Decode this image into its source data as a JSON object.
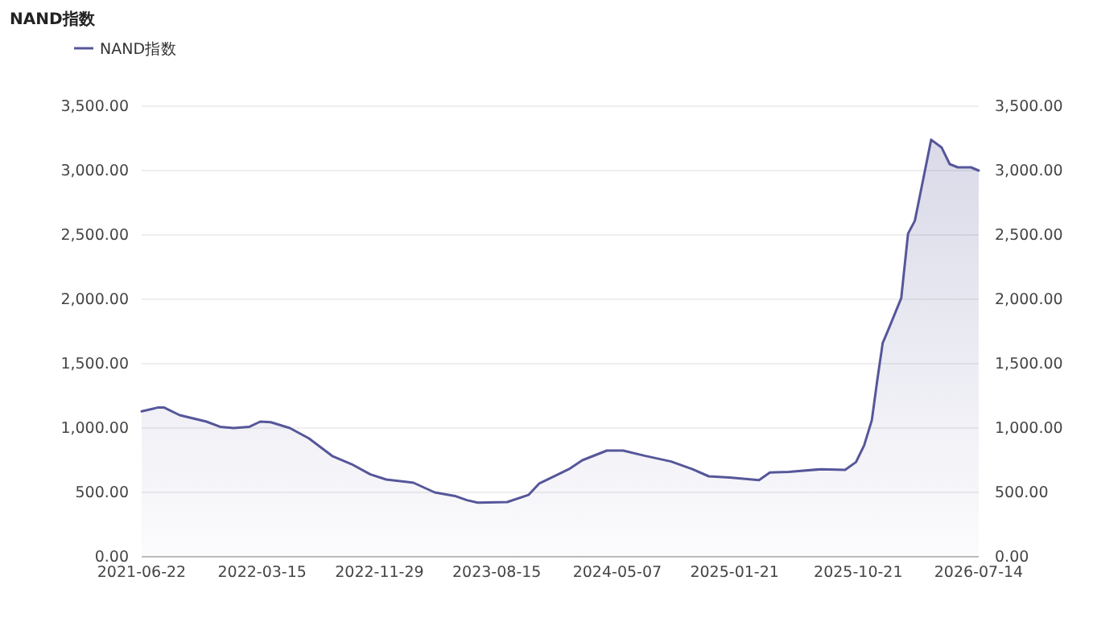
{
  "chart_data": {
    "type": "area",
    "title": "NAND指数",
    "legend": "top left",
    "grid": "y",
    "marker": "none",
    "line_style": "solid",
    "x": [
      "2021-06-22",
      "2021-07-29",
      "2021-08-10",
      "2021-09-14",
      "2021-11-12",
      "2021-12-12",
      "2022-01-11",
      "2022-02-15",
      "2022-03-11",
      "2022-04-03",
      "2022-05-15",
      "2022-06-26",
      "2022-08-18",
      "2022-09-28",
      "2022-11-09",
      "2022-12-14",
      "2023-02-12",
      "2023-03-31",
      "2023-05-17",
      "2023-06-10",
      "2023-07-04",
      "2023-09-07",
      "2023-10-24",
      "2023-11-17",
      "2024-01-21",
      "2024-02-20",
      "2024-04-14",
      "2024-05-20",
      "2024-07-06",
      "2024-09-03",
      "2024-10-20",
      "2024-11-25",
      "2025-01-10",
      "2025-03-16",
      "2025-04-09",
      "2025-05-21",
      "2025-07-31",
      "2025-09-22",
      "2025-10-16",
      "2025-11-03",
      "2025-11-20",
      "2025-12-02",
      "2025-12-14",
      "2025-12-26",
      "2026-01-24",
      "2026-02-08",
      "2026-02-23",
      "2026-03-31",
      "2026-04-23",
      "2026-05-11",
      "2026-05-29",
      "2026-06-27",
      "2026-07-14"
    ],
    "series": [
      {
        "name": "NAND指数",
        "color": "#56569a",
        "values": [
          1130,
          1160,
          1160,
          1100,
          1050,
          1010,
          1000,
          1010,
          1050,
          1045,
          1000,
          920,
          780,
          720,
          640,
          600,
          575,
          500,
          470,
          440,
          420,
          425,
          480,
          570,
          680,
          750,
          825,
          825,
          785,
          740,
          680,
          625,
          615,
          595,
          655,
          660,
          680,
          675,
          735,
          865,
          1060,
          1370,
          1660,
          1760,
          2010,
          2510,
          2610,
          3240,
          3180,
          3050,
          3025,
          3025,
          3000
        ]
      }
    ],
    "xlim": [
      "2021-06-22",
      "2026-07-14"
    ],
    "xticks": [
      {
        "value": "2021-06-22",
        "label": "2021-06-22"
      },
      {
        "value": "2022-03-15",
        "label": "2022-03-15"
      },
      {
        "value": "2022-11-29",
        "label": "2022-11-29"
      },
      {
        "value": "2023-08-15",
        "label": "2023-08-15"
      },
      {
        "value": "2024-05-07",
        "label": "2024-05-07"
      },
      {
        "value": "2025-01-21",
        "label": "2025-01-21"
      },
      {
        "value": "2025-10-21",
        "label": "2025-10-21"
      },
      {
        "value": "2026-07-14",
        "label": "2026-07-14"
      }
    ],
    "ylim": [
      0,
      3500
    ],
    "yticks": [
      {
        "value": 0,
        "label": "0.00"
      },
      {
        "value": 500,
        "label": "500.00"
      },
      {
        "value": 1000,
        "label": "1,000.00"
      },
      {
        "value": 1500,
        "label": "1,500.00"
      },
      {
        "value": 2000,
        "label": "2,000.00"
      },
      {
        "value": 2500,
        "label": "2,500.00"
      },
      {
        "value": 3000,
        "label": "3,000.00"
      },
      {
        "value": 3500,
        "label": "3,500.00"
      }
    ],
    "y2lim": [
      0,
      3500
    ],
    "y2ticks": [
      {
        "value": 0,
        "label": "0.00"
      },
      {
        "value": 500,
        "label": "500.00"
      },
      {
        "value": 1000,
        "label": "1,000.00"
      },
      {
        "value": 1500,
        "label": "1,500.00"
      },
      {
        "value": 2000,
        "label": "2,000.00"
      },
      {
        "value": 2500,
        "label": "2,500.00"
      },
      {
        "value": 3000,
        "label": "3,000.00"
      },
      {
        "value": 3500,
        "label": "3,500.00"
      }
    ]
  }
}
